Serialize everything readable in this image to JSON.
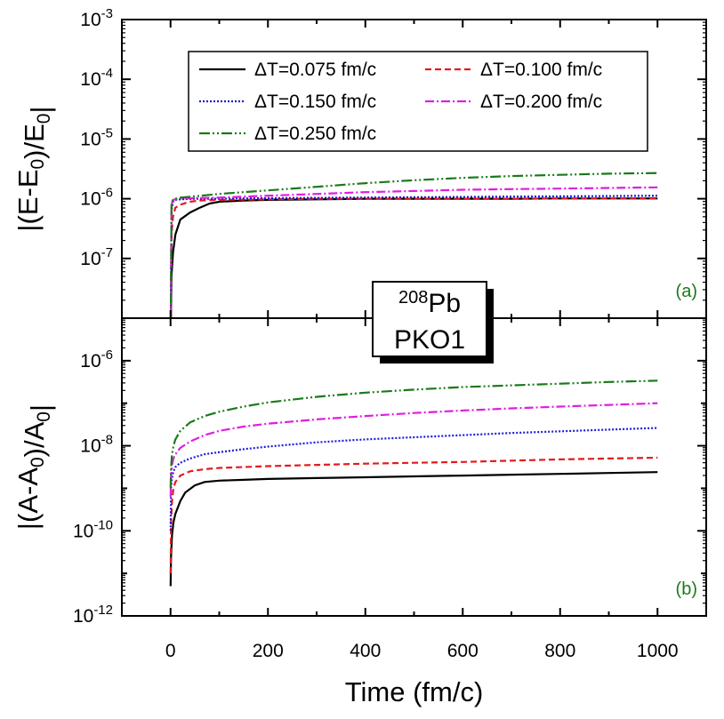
{
  "chart_data": [
    {
      "type": "line",
      "panel_label": "(a)",
      "panel_label_color": "#1a7a1a",
      "ylabel": "|(E-E0)/E0|",
      "yscale": "log",
      "ylim_exp": [
        -8,
        -3
      ],
      "ytick_exps": [
        -7,
        -6,
        -5,
        -4,
        -3
      ],
      "xlim": [
        -100,
        1100
      ],
      "series": [
        {
          "name": "ΔT=0.075 fm/c",
          "color": "#000000",
          "dash": "",
          "x": [
            0,
            2,
            5,
            10,
            20,
            40,
            60,
            80,
            100,
            150,
            200,
            300,
            400,
            500,
            600,
            700,
            800,
            900,
            1000
          ],
          "y_log10": [
            -8.5,
            -7.3,
            -6.9,
            -6.6,
            -6.35,
            -6.23,
            -6.15,
            -6.08,
            -6.05,
            -6.03,
            -6.02,
            -6.01,
            -6.0,
            -6.0,
            -6.0,
            -6.0,
            -5.995,
            -5.995,
            -5.995
          ]
        },
        {
          "name": "ΔT=0.100 fm/c",
          "color": "#e41a1c",
          "dash": "7,4",
          "x": [
            0,
            2,
            5,
            10,
            20,
            40,
            60,
            100,
            200,
            300,
            400,
            500,
            600,
            700,
            800,
            900,
            1000
          ],
          "y_log10": [
            -8.5,
            -6.6,
            -6.3,
            -6.15,
            -6.1,
            -6.05,
            -6.03,
            -6.02,
            -6.01,
            -6.0,
            -6.0,
            -6.0,
            -6.0,
            -6.0,
            -5.995,
            -5.995,
            -5.99
          ]
        },
        {
          "name": "ΔT=0.150 fm/c",
          "color": "#1c1cd6",
          "dash": "2,2",
          "x": [
            0,
            2,
            5,
            10,
            20,
            50,
            100,
            200,
            300,
            400,
            500,
            600,
            700,
            800,
            900,
            1000
          ],
          "y_log10": [
            -8.5,
            -6.2,
            -6.05,
            -6.02,
            -6.01,
            -6.0,
            -6.0,
            -5.99,
            -5.985,
            -5.98,
            -5.975,
            -5.97,
            -5.965,
            -5.96,
            -5.955,
            -5.95
          ]
        },
        {
          "name": "ΔT=0.200 fm/c",
          "color": "#e21ce2",
          "dash": "10,3,2,3",
          "x": [
            0,
            2,
            5,
            10,
            20,
            50,
            100,
            200,
            300,
            400,
            500,
            600,
            700,
            800,
            900,
            1000
          ],
          "y_log10": [
            -8.5,
            -6.1,
            -6.02,
            -6.01,
            -6.0,
            -5.99,
            -5.98,
            -5.95,
            -5.92,
            -5.89,
            -5.87,
            -5.85,
            -5.84,
            -5.83,
            -5.82,
            -5.81
          ]
        },
        {
          "name": "ΔT=0.250 fm/c",
          "color": "#1a7a1a",
          "dash": "12,3,2,3,2,3",
          "x": [
            0,
            2,
            5,
            10,
            20,
            50,
            100,
            200,
            300,
            400,
            500,
            600,
            700,
            800,
            900,
            1000
          ],
          "y_log10": [
            -8.5,
            -6.08,
            -6.02,
            -6.0,
            -5.98,
            -5.96,
            -5.92,
            -5.86,
            -5.8,
            -5.74,
            -5.69,
            -5.65,
            -5.62,
            -5.6,
            -5.58,
            -5.57
          ]
        }
      ]
    },
    {
      "type": "line",
      "panel_label": "(b)",
      "panel_label_color": "#1a7a1a",
      "ylabel": "|(A-A0)/A0|",
      "yscale": "log",
      "ylim_exp": [
        -12,
        -5
      ],
      "ytick_exps": [
        -12,
        -10,
        -8,
        -6
      ],
      "xlim": [
        -100,
        1100
      ],
      "xlabel": "Time (fm/c)",
      "xticks": [
        0,
        200,
        400,
        600,
        800,
        1000
      ],
      "series": [
        {
          "name": "ΔT=0.075 fm/c",
          "color": "#000000",
          "dash": "",
          "x": [
            0,
            1,
            3,
            6,
            10,
            20,
            30,
            50,
            70,
            100,
            150,
            200,
            300,
            400,
            500,
            600,
            700,
            800,
            900,
            1000
          ],
          "y_log10": [
            -11.3,
            -10.6,
            -10.1,
            -9.8,
            -9.6,
            -9.3,
            -9.1,
            -8.93,
            -8.85,
            -8.82,
            -8.8,
            -8.78,
            -8.76,
            -8.74,
            -8.72,
            -8.7,
            -8.68,
            -8.66,
            -8.64,
            -8.62
          ]
        },
        {
          "name": "ΔT=0.100 fm/c",
          "color": "#e41a1c",
          "dash": "7,4",
          "x": [
            0,
            1,
            3,
            6,
            10,
            20,
            40,
            70,
            100,
            150,
            200,
            300,
            400,
            500,
            600,
            700,
            800,
            900,
            1000
          ],
          "y_log10": [
            -11.0,
            -9.8,
            -9.3,
            -9.0,
            -8.85,
            -8.7,
            -8.6,
            -8.55,
            -8.52,
            -8.5,
            -8.48,
            -8.45,
            -8.42,
            -8.4,
            -8.38,
            -8.35,
            -8.32,
            -8.3,
            -8.28
          ]
        },
        {
          "name": "ΔT=0.150 fm/c",
          "color": "#1c1cd6",
          "dash": "2,2",
          "x": [
            0,
            1,
            3,
            6,
            10,
            20,
            40,
            70,
            100,
            150,
            200,
            300,
            400,
            500,
            600,
            700,
            800,
            900,
            1000
          ],
          "y_log10": [
            -10.0,
            -9.0,
            -8.75,
            -8.6,
            -8.5,
            -8.4,
            -8.3,
            -8.2,
            -8.15,
            -8.08,
            -8.02,
            -7.92,
            -7.85,
            -7.8,
            -7.75,
            -7.7,
            -7.66,
            -7.62,
            -7.58
          ]
        },
        {
          "name": "ΔT=0.200 fm/c",
          "color": "#e21ce2",
          "dash": "10,3,2,3",
          "x": [
            0,
            1,
            3,
            6,
            10,
            20,
            40,
            70,
            100,
            150,
            200,
            300,
            400,
            500,
            600,
            700,
            800,
            900,
            1000
          ],
          "y_log10": [
            -9.2,
            -8.7,
            -8.45,
            -8.3,
            -8.2,
            -8.05,
            -7.9,
            -7.75,
            -7.65,
            -7.55,
            -7.48,
            -7.38,
            -7.3,
            -7.23,
            -7.17,
            -7.12,
            -7.08,
            -7.04,
            -7.0
          ]
        },
        {
          "name": "ΔT=0.250 fm/c",
          "color": "#1a7a1a",
          "dash": "12,3,2,3,2,3",
          "x": [
            0,
            1,
            3,
            6,
            10,
            20,
            40,
            70,
            100,
            150,
            200,
            300,
            400,
            500,
            600,
            700,
            800,
            900,
            1000
          ],
          "y_log10": [
            -9.0,
            -8.5,
            -8.2,
            -8.0,
            -7.85,
            -7.65,
            -7.45,
            -7.3,
            -7.2,
            -7.08,
            -6.98,
            -6.85,
            -6.75,
            -6.68,
            -6.62,
            -6.58,
            -6.54,
            -6.5,
            -6.47
          ]
        }
      ]
    }
  ],
  "inset": {
    "mass_number": "208",
    "element": "Pb",
    "model": "PKO1"
  },
  "legend": {
    "placement": "top-center of panel (a)"
  }
}
